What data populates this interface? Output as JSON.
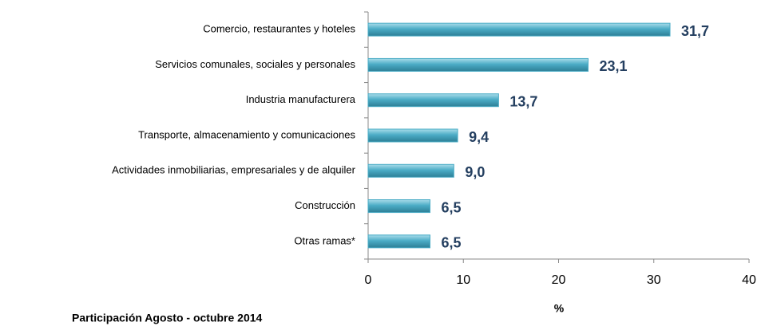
{
  "chart_data": {
    "type": "hbar",
    "categories": [
      "Comercio, restaurantes y hoteles",
      "Servicios comunales, sociales y personales",
      "Industria manufacturera",
      "Transporte, almacenamiento y comunicaciones",
      "Actividades inmobiliarias, empresariales y de alquiler",
      "Construcción",
      "Otras ramas*"
    ],
    "values": [
      31.7,
      23.1,
      13.7,
      9.4,
      9.0,
      6.5,
      6.5
    ],
    "value_labels": [
      "31,7",
      "23,1",
      "13,7",
      "9,4",
      "9,0",
      "6,5",
      "6,5"
    ],
    "color": "#4bacc6",
    "xlim": [
      0,
      40
    ],
    "xticks": [
      0,
      10,
      20,
      30,
      40
    ],
    "xlabel": "%",
    "annotation": "Participación  Agosto - octubre 2014"
  }
}
